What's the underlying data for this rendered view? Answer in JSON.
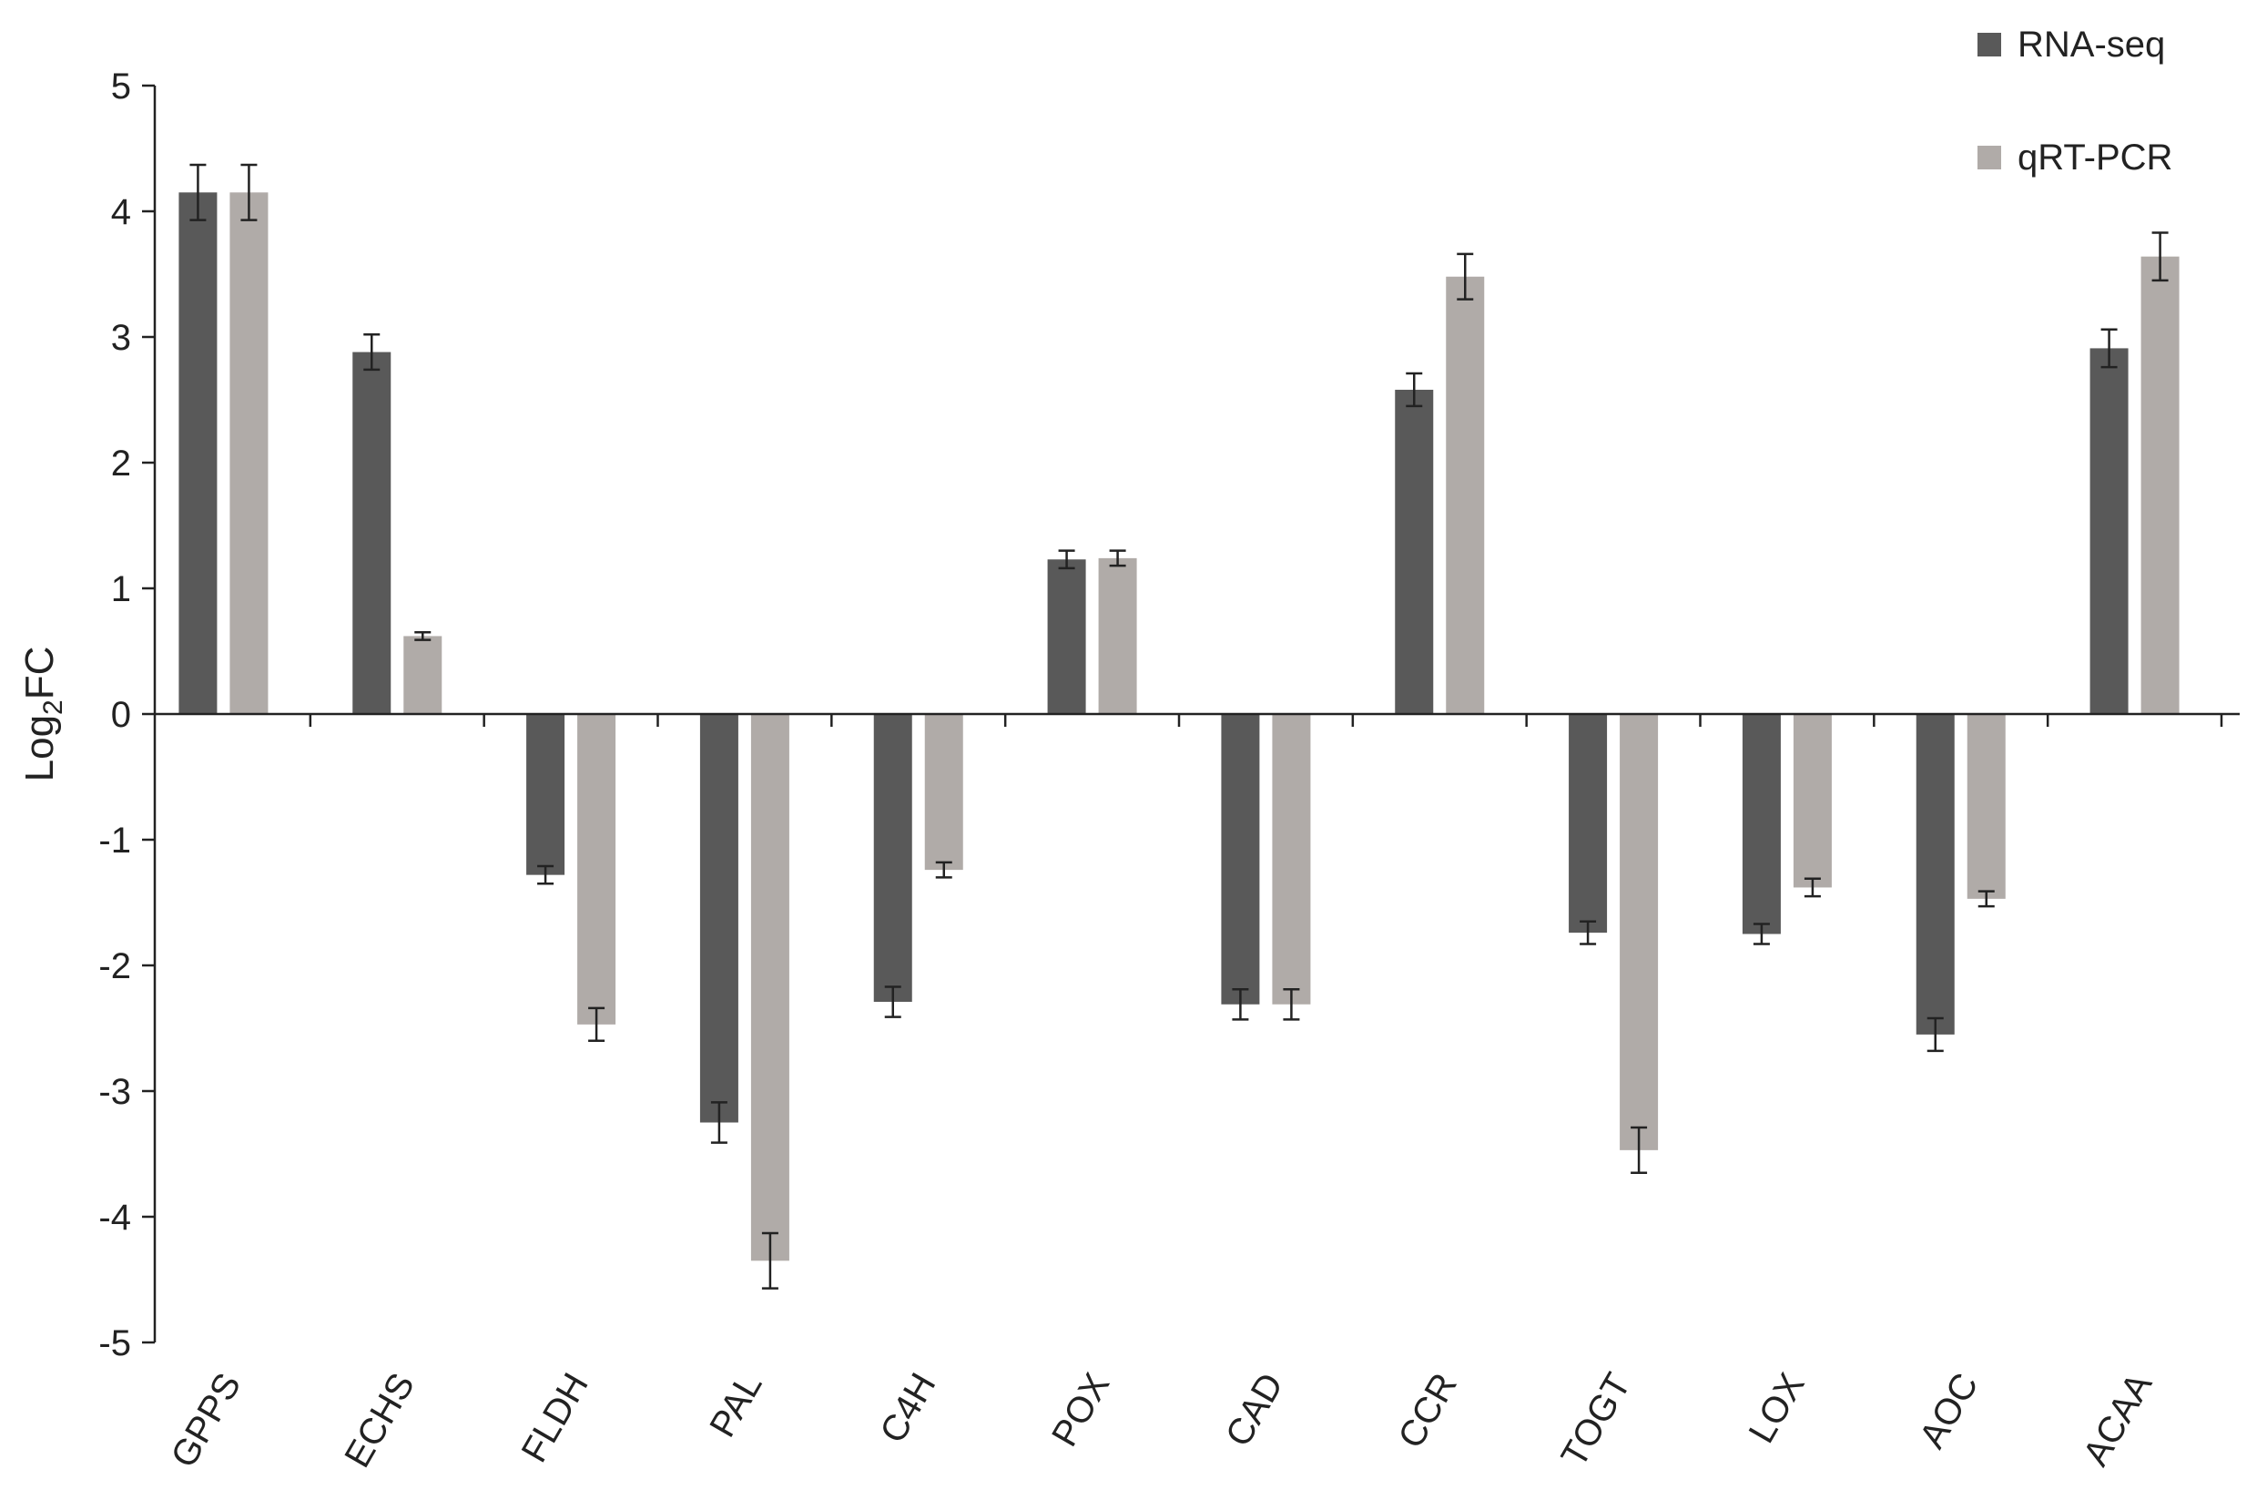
{
  "chart_data": {
    "type": "bar",
    "ylabel_main": "Log",
    "ylabel_sub": "2",
    "ylabel_tail": "FC",
    "xlabel": "",
    "ylim": [
      -5,
      5
    ],
    "yticks": [
      5,
      4,
      3,
      2,
      1,
      0,
      -1,
      -2,
      -3,
      -4,
      -5
    ],
    "ytick_labels": [
      "5",
      "4",
      "3",
      "2",
      "1",
      "0",
      "-1",
      "-2",
      "-3",
      "-4",
      "-5"
    ],
    "categories": [
      "GPPS",
      "ECHS",
      "FLDH",
      "PAL",
      "C4H",
      "POX",
      "CAD",
      "CCR",
      "TOGT",
      "LOX",
      "AOC",
      "ACAA"
    ],
    "legend_position": "top-right",
    "grid": false,
    "series": [
      {
        "name": "RNA-seq",
        "color": "#595959",
        "values": [
          4.15,
          2.88,
          -1.28,
          -3.25,
          -2.29,
          1.23,
          -2.31,
          2.58,
          -1.74,
          -1.75,
          -2.55,
          2.91
        ],
        "errors": [
          0.22,
          0.14,
          0.07,
          0.16,
          0.12,
          0.07,
          0.12,
          0.13,
          0.09,
          0.08,
          0.13,
          0.15
        ]
      },
      {
        "name": "qRT-PCR",
        "color": "#b0aba8",
        "values": [
          4.15,
          0.62,
          -2.47,
          -4.35,
          -1.24,
          1.24,
          -2.31,
          3.48,
          -3.47,
          -1.38,
          -1.47,
          3.64
        ],
        "errors": [
          0.22,
          0.03,
          0.13,
          0.22,
          0.06,
          0.06,
          0.12,
          0.18,
          0.18,
          0.07,
          0.06,
          0.19
        ]
      }
    ]
  }
}
